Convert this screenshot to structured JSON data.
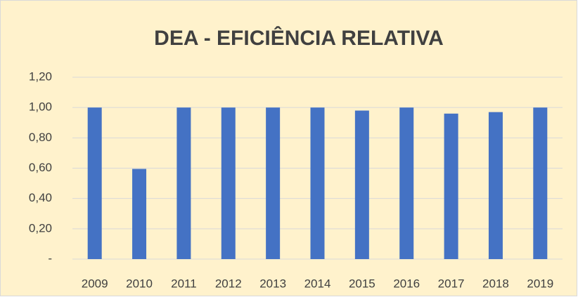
{
  "chart_data": {
    "type": "bar",
    "title": "DEA - EFICIÊNCIA RELATIVA",
    "categories": [
      "2009",
      "2010",
      "2011",
      "2012",
      "2013",
      "2014",
      "2015",
      "2016",
      "2017",
      "2018",
      "2019"
    ],
    "values": [
      1.0,
      0.595,
      1.0,
      1.0,
      1.0,
      1.0,
      0.98,
      1.0,
      0.96,
      0.97,
      1.0
    ],
    "color": "#4472c4",
    "ylim": [
      0,
      1.2
    ],
    "yticks": [
      {
        "value": 0,
        "label": "-"
      },
      {
        "value": 0.2,
        "label": "0,20"
      },
      {
        "value": 0.4,
        "label": "0,40"
      },
      {
        "value": 0.6,
        "label": "0,60"
      },
      {
        "value": 0.8,
        "label": "0,80"
      },
      {
        "value": 1.0,
        "label": "1,00"
      },
      {
        "value": 1.2,
        "label": "1,20"
      }
    ],
    "grid": true
  }
}
